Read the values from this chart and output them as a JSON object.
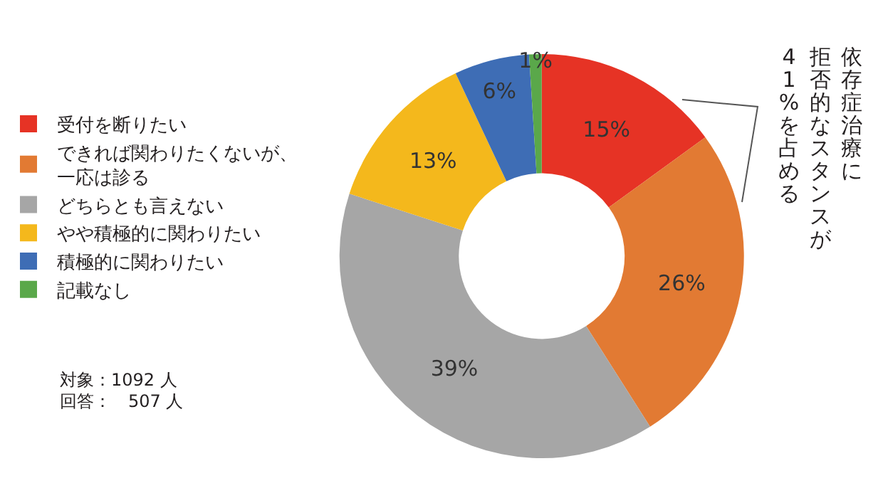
{
  "chart_data": {
    "type": "donut",
    "categories": [
      "受付を断りたい",
      "できれば関わりたくないが、一応は診る",
      "どちらとも言えない",
      "やや積極的に関わりたい",
      "積極的に関わりたい",
      "記載なし"
    ],
    "values": [
      15,
      26,
      39,
      13,
      6,
      1
    ],
    "colors": [
      "#e63325",
      "#e27a33",
      "#a6a6a6",
      "#f4b81c",
      "#3e6db5",
      "#5aa84a"
    ],
    "value_labels": [
      "15%",
      "26%",
      "39%",
      "13%",
      "6%",
      "1%"
    ],
    "legend": "left",
    "annotations": [
      "依存症治療に",
      "拒否的なスタンスが",
      "41%を占める",
      "対象：1092 人",
      "回答：　507 人"
    ]
  }
}
